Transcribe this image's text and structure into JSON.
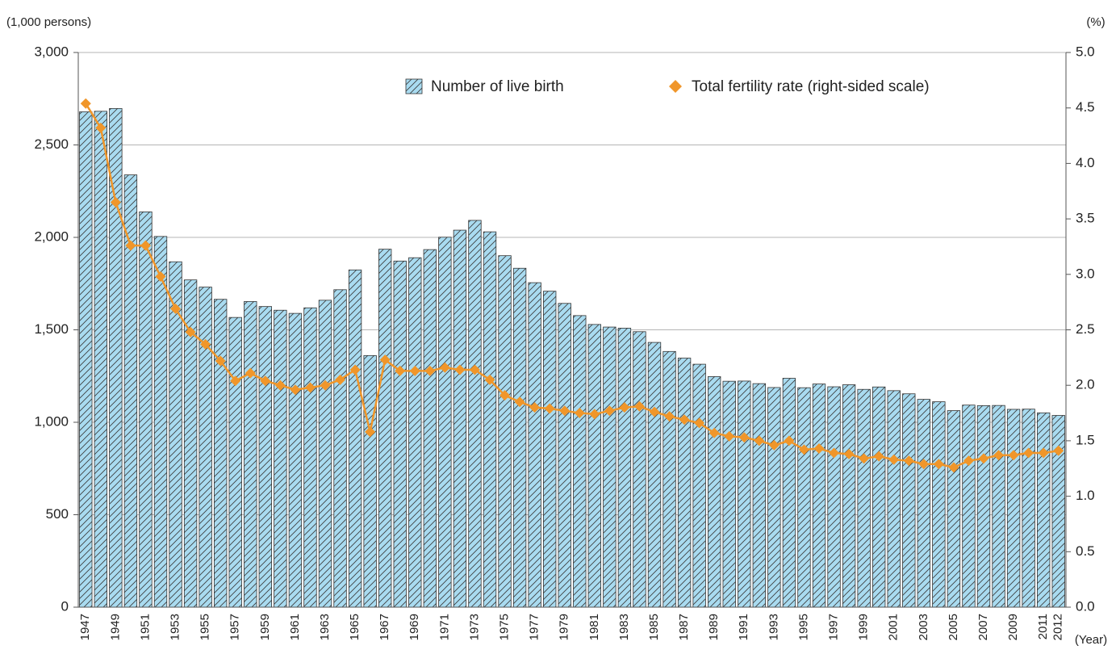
{
  "chart_data": {
    "type": "bar-line",
    "y_label": "(1,000 persons)",
    "y2_label": "(%)",
    "x_label": "(Year)",
    "categories": [
      "1947",
      null,
      "1949",
      null,
      "1951",
      null,
      "1953",
      null,
      "1955",
      null,
      "1957",
      null,
      "1959",
      null,
      "1961",
      null,
      "1963",
      null,
      "1965",
      null,
      "1967",
      null,
      "1969",
      null,
      "1971",
      null,
      "1973",
      null,
      "1975",
      null,
      "1977",
      null,
      "1979",
      null,
      "1981",
      null,
      "1983",
      null,
      "1985",
      null,
      "1987",
      null,
      "1989",
      null,
      "1991",
      null,
      "1993",
      null,
      "1995",
      null,
      "1997",
      null,
      "1999",
      null,
      "2001",
      null,
      "2003",
      null,
      "2005",
      null,
      "2007",
      null,
      "2009",
      null,
      "2011",
      "2012"
    ],
    "series": [
      {
        "name": "Number of live birth",
        "type": "bar",
        "color": "#a9dbf0",
        "hatch": true,
        "values": [
          2679,
          2682,
          2697,
          2338,
          2138,
          2005,
          1868,
          1770,
          1731,
          1665,
          1567,
          1653,
          1626,
          1606,
          1589,
          1619,
          1660,
          1717,
          1824,
          1361,
          1936,
          1872,
          1890,
          1934,
          2001,
          2039,
          2092,
          2030,
          1901,
          1833,
          1755,
          1709,
          1643,
          1577,
          1529,
          1515,
          1509,
          1490,
          1432,
          1383,
          1347,
          1314,
          1247,
          1222,
          1223,
          1209,
          1188,
          1238,
          1187,
          1207,
          1192,
          1203,
          1178,
          1191,
          1171,
          1154,
          1124,
          1111,
          1063,
          1093,
          1090,
          1091,
          1070,
          1071,
          1051,
          1037
        ]
      },
      {
        "name": "Total fertility rate (right-sided scale)",
        "type": "line",
        "axis": "y2",
        "color": "#f0962a",
        "values": [
          4.54,
          4.32,
          3.65,
          3.26,
          3.26,
          2.98,
          2.69,
          2.48,
          2.37,
          2.22,
          2.04,
          2.11,
          2.04,
          2.0,
          1.96,
          1.98,
          2.0,
          2.05,
          2.14,
          1.58,
          2.23,
          2.13,
          2.13,
          2.13,
          2.16,
          2.14,
          2.14,
          2.05,
          1.91,
          1.85,
          1.8,
          1.79,
          1.77,
          1.75,
          1.74,
          1.77,
          1.8,
          1.81,
          1.76,
          1.72,
          1.69,
          1.66,
          1.57,
          1.54,
          1.53,
          1.5,
          1.46,
          1.5,
          1.42,
          1.43,
          1.39,
          1.38,
          1.34,
          1.36,
          1.33,
          1.32,
          1.29,
          1.29,
          1.26,
          1.32,
          1.34,
          1.37,
          1.37,
          1.39,
          1.39,
          1.41
        ]
      }
    ],
    "ylim": [
      0,
      3000
    ],
    "yticks": [
      0,
      500,
      {
        "value": 1000,
        "label": "1,000"
      },
      {
        "value": 1500,
        "label": "1,500"
      },
      {
        "value": 2000,
        "label": "2,000"
      },
      {
        "value": 2500,
        "label": "2,500"
      },
      {
        "value": 3000,
        "label": "3,000"
      }
    ],
    "y2lim": [
      0,
      5
    ],
    "y2ticks": [
      {
        "value": 0,
        "label": "0.0"
      },
      {
        "value": 0.5,
        "label": "0.5"
      },
      {
        "value": 1,
        "label": "1.0"
      },
      {
        "value": 1.5,
        "label": "1.5"
      },
      {
        "value": 2,
        "label": "2.0"
      },
      {
        "value": 2.5,
        "label": "2.5"
      },
      {
        "value": 3,
        "label": "3.0"
      },
      {
        "value": 3.5,
        "label": "3.5"
      },
      {
        "value": 4,
        "label": "4.0"
      },
      {
        "value": 4.5,
        "label": "4.5"
      },
      {
        "value": 5,
        "label": "5.0"
      }
    ],
    "grid": true,
    "legend": "top"
  }
}
